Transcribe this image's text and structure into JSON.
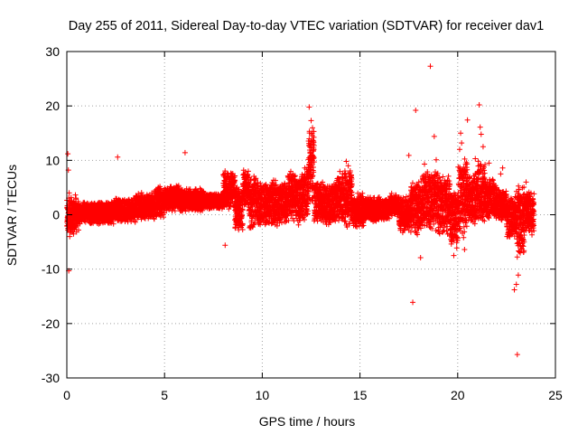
{
  "chart_data": {
    "type": "scatter",
    "title": "Day 255 of 2011, Sidereal Day-to-day VTEC variation (SDTVAR) for receiver dav1",
    "xlabel": "GPS time / hours",
    "ylabel": "SDTVAR / TECUs",
    "xlim": [
      0,
      25
    ],
    "ylim": [
      -30,
      30
    ],
    "xticks": [
      0,
      5,
      10,
      15,
      20,
      25
    ],
    "yticks": [
      -30,
      -20,
      -10,
      0,
      10,
      20,
      30
    ],
    "xtick_labels": [
      "0",
      "5",
      "10",
      "15",
      "20",
      "25"
    ],
    "ytick_labels": [
      "-30",
      "-20",
      "-10",
      "0",
      "10",
      "20",
      "30"
    ],
    "grid": true,
    "marker": "+",
    "series": [
      {
        "name": "dav1",
        "color": "#ff0000",
        "points": [
          [
            0.05,
            11.2
          ],
          [
            0.08,
            8.2
          ],
          [
            0.1,
            -10.3
          ],
          [
            0.12,
            4.0
          ],
          [
            0.15,
            -4.0
          ],
          [
            0.3,
            -2.0
          ],
          [
            0.6,
            -2.8
          ],
          [
            2.6,
            10.6
          ],
          [
            6.05,
            11.4
          ],
          [
            8.1,
            -5.6
          ],
          [
            12.4,
            19.8
          ],
          [
            12.5,
            17.3
          ],
          [
            12.55,
            15.0
          ],
          [
            12.6,
            13.0
          ],
          [
            12.45,
            11.5
          ],
          [
            14.3,
            9.8
          ],
          [
            14.4,
            9.0
          ],
          [
            17.5,
            10.9
          ],
          [
            17.7,
            -16.1
          ],
          [
            17.85,
            19.2
          ],
          [
            18.1,
            -7.9
          ],
          [
            18.3,
            9.3
          ],
          [
            18.6,
            27.3
          ],
          [
            18.8,
            14.4
          ],
          [
            18.9,
            10.1
          ],
          [
            19.8,
            -7.5
          ],
          [
            20.15,
            15.0
          ],
          [
            20.2,
            13.2
          ],
          [
            20.3,
            -4.2
          ],
          [
            20.35,
            -6.4
          ],
          [
            20.5,
            17.4
          ],
          [
            20.9,
            10.3
          ],
          [
            21.1,
            20.2
          ],
          [
            21.15,
            16.1
          ],
          [
            21.2,
            14.8
          ],
          [
            21.6,
            9.5
          ],
          [
            21.05,
            8.0
          ],
          [
            22.3,
            8.6
          ],
          [
            22.9,
            -13.8
          ],
          [
            23.0,
            -12.8
          ],
          [
            23.05,
            -25.7
          ],
          [
            23.1,
            -11.1
          ],
          [
            23.2,
            -7.0
          ],
          [
            23.3,
            -4.8
          ],
          [
            23.5,
            6.0
          ],
          [
            23.8,
            -3.7
          ],
          [
            21.3,
            12.5
          ],
          [
            21.4,
            9.2
          ],
          [
            22.2,
            7.5
          ],
          [
            20.1,
            12.0
          ]
        ],
        "bands": [
          [
            0.0,
            0.5,
            -4.0,
            4.0
          ],
          [
            0.5,
            2.4,
            -1.8,
            2.5
          ],
          [
            2.4,
            3.5,
            -1.6,
            3.2
          ],
          [
            3.5,
            4.5,
            -1.0,
            4.2
          ],
          [
            4.5,
            5.0,
            -0.6,
            5.5
          ],
          [
            5.0,
            5.8,
            0.5,
            5.5
          ],
          [
            5.8,
            7.0,
            0.5,
            5.0
          ],
          [
            7.0,
            8.0,
            1.0,
            4.0
          ],
          [
            8.0,
            8.6,
            1.0,
            8.2
          ],
          [
            8.6,
            9.0,
            -3.5,
            5.5
          ],
          [
            9.0,
            9.3,
            1.5,
            8.5
          ],
          [
            9.3,
            9.9,
            -3.0,
            7.5
          ],
          [
            9.9,
            10.4,
            -1.8,
            6.0
          ],
          [
            10.4,
            10.9,
            -2.5,
            6.8
          ],
          [
            10.9,
            11.3,
            -2.0,
            6.5
          ],
          [
            11.3,
            11.7,
            -1.8,
            8.8
          ],
          [
            11.7,
            12.1,
            -2.0,
            7.5
          ],
          [
            12.1,
            12.35,
            -1.5,
            9.0
          ],
          [
            12.35,
            12.65,
            2.0,
            16.5
          ],
          [
            12.65,
            13.2,
            -1.5,
            6.5
          ],
          [
            13.2,
            13.8,
            -2.0,
            6.0
          ],
          [
            13.8,
            14.2,
            -1.5,
            8.2
          ],
          [
            14.2,
            14.6,
            -2.5,
            9.2
          ],
          [
            14.6,
            15.2,
            -2.5,
            4.0
          ],
          [
            15.2,
            16.0,
            -1.5,
            3.5
          ],
          [
            16.0,
            16.5,
            -1.0,
            3.0
          ],
          [
            16.5,
            17.0,
            -0.5,
            4.0
          ],
          [
            17.0,
            17.6,
            -3.5,
            3.5
          ],
          [
            17.6,
            18.2,
            -3.8,
            6.5
          ],
          [
            18.2,
            19.0,
            -3.0,
            8.5
          ],
          [
            19.0,
            19.6,
            -4.0,
            7.5
          ],
          [
            19.6,
            20.0,
            -6.5,
            5.5
          ],
          [
            20.0,
            20.5,
            -4.5,
            11.0
          ],
          [
            20.5,
            21.0,
            -2.5,
            8.0
          ],
          [
            21.0,
            21.4,
            -1.5,
            10.5
          ],
          [
            21.4,
            22.0,
            -1.0,
            7.0
          ],
          [
            22.0,
            22.5,
            -1.2,
            4.8
          ],
          [
            22.5,
            23.0,
            -4.5,
            3.5
          ],
          [
            23.0,
            23.4,
            -8.5,
            6.0
          ],
          [
            23.4,
            23.9,
            -3.5,
            4.5
          ]
        ]
      }
    ]
  }
}
